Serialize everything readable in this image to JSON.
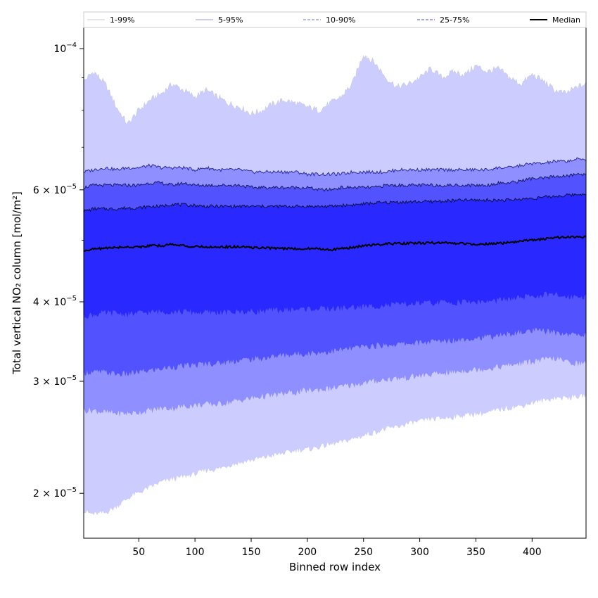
{
  "chart_data": {
    "type": "area",
    "xlabel": "Binned row index",
    "ylabel": "Total vertical NO₂ column [mol/m²]",
    "xlim": [
      1,
      448
    ],
    "ylim": [
      1.7e-05,
      0.000108
    ],
    "yscale": "log",
    "x_ticks": [
      50,
      100,
      150,
      200,
      250,
      300,
      350,
      400
    ],
    "x_tick_labels": [
      "50",
      "100",
      "150",
      "200",
      "250",
      "300",
      "350",
      "400"
    ],
    "y_ticks": [
      2e-05,
      3e-05,
      4e-05,
      6e-05,
      0.0001
    ],
    "y_tick_labels": [
      {
        "mantissa": "2",
        "exp": "−5"
      },
      {
        "mantissa": "3",
        "exp": "−5"
      },
      {
        "mantissa": "4",
        "exp": "−5"
      },
      {
        "mantissa": "6",
        "exp": "−5"
      },
      {
        "mantissa": "",
        "exp": "−4"
      }
    ],
    "legend_position": "top",
    "x": [
      1,
      10,
      20,
      30,
      40,
      50,
      60,
      70,
      80,
      90,
      100,
      110,
      120,
      130,
      140,
      150,
      160,
      170,
      180,
      190,
      200,
      210,
      220,
      230,
      240,
      250,
      260,
      270,
      280,
      290,
      300,
      310,
      320,
      330,
      340,
      350,
      360,
      370,
      380,
      390,
      400,
      410,
      420,
      430,
      440,
      448
    ],
    "bands": [
      {
        "name": "1-99%",
        "fill": "#ccccff",
        "line_color": "#c8c8e8",
        "line_style": "solid",
        "upper": [
          8.9e-05,
          9.2e-05,
          8.8e-05,
          8.1e-05,
          7.6e-05,
          8e-05,
          8.3e-05,
          8.5e-05,
          8.8e-05,
          8.6e-05,
          8.4e-05,
          8.6e-05,
          8.4e-05,
          8.2e-05,
          8.1e-05,
          7.9e-05,
          8e-05,
          8.2e-05,
          8.3e-05,
          8.2e-05,
          8.1e-05,
          8e-05,
          8.2e-05,
          8.4e-05,
          8.8e-05,
          9.8e-05,
          9.5e-05,
          9e-05,
          8.7e-05,
          8.8e-05,
          9e-05,
          9.3e-05,
          9e-05,
          9.2e-05,
          9.1e-05,
          9.4e-05,
          9.2e-05,
          9.3e-05,
          9e-05,
          8.8e-05,
          9.1e-05,
          8.9e-05,
          8.6e-05,
          8.5e-05,
          8.7e-05,
          8.8e-05
        ],
        "lower": [
          1.87e-05,
          1.85e-05,
          1.86e-05,
          1.9e-05,
          1.96e-05,
          2e-05,
          2.04e-05,
          2.08e-05,
          2.1e-05,
          2.12e-05,
          2.14e-05,
          2.17e-05,
          2.18e-05,
          2.21e-05,
          2.23e-05,
          2.25e-05,
          2.27e-05,
          2.29e-05,
          2.31e-05,
          2.33e-05,
          2.34e-05,
          2.36e-05,
          2.38e-05,
          2.4e-05,
          2.43e-05,
          2.46e-05,
          2.49e-05,
          2.52e-05,
          2.54e-05,
          2.57e-05,
          2.59e-05,
          2.61e-05,
          2.62e-05,
          2.63e-05,
          2.65e-05,
          2.66e-05,
          2.67e-05,
          2.7e-05,
          2.72e-05,
          2.74e-05,
          2.77e-05,
          2.79e-05,
          2.82e-05,
          2.82e-05,
          2.83e-05,
          2.84e-05
        ]
      },
      {
        "name": "5-95%",
        "fill": "#8f8fff",
        "line_color": "#2a2aa0",
        "line_style": "solid",
        "upper": [
          6.4e-05,
          6.45e-05,
          6.5e-05,
          6.45e-05,
          6.5e-05,
          6.5e-05,
          6.55e-05,
          6.5e-05,
          6.5e-05,
          6.5e-05,
          6.45e-05,
          6.5e-05,
          6.45e-05,
          6.45e-05,
          6.45e-05,
          6.4e-05,
          6.4e-05,
          6.4e-05,
          6.4e-05,
          6.4e-05,
          6.35e-05,
          6.35e-05,
          6.35e-05,
          6.35e-05,
          6.4e-05,
          6.4e-05,
          6.4e-05,
          6.4e-05,
          6.45e-05,
          6.45e-05,
          6.45e-05,
          6.45e-05,
          6.45e-05,
          6.45e-05,
          6.45e-05,
          6.45e-05,
          6.45e-05,
          6.5e-05,
          6.5e-05,
          6.55e-05,
          6.6e-05,
          6.6e-05,
          6.65e-05,
          6.65e-05,
          6.7e-05,
          6.7e-05
        ],
        "lower": [
          2.7e-05,
          2.7e-05,
          2.68e-05,
          2.67e-05,
          2.67e-05,
          2.68e-05,
          2.7e-05,
          2.72e-05,
          2.72e-05,
          2.74e-05,
          2.75e-05,
          2.76e-05,
          2.76e-05,
          2.78e-05,
          2.8e-05,
          2.82e-05,
          2.84e-05,
          2.85e-05,
          2.87e-05,
          2.88e-05,
          2.9e-05,
          2.91e-05,
          2.92e-05,
          2.94e-05,
          2.96e-05,
          2.98e-05,
          3e-05,
          3.02e-05,
          3.03e-05,
          3.04e-05,
          3.06e-05,
          3.07e-05,
          3.09e-05,
          3.1e-05,
          3.12e-05,
          3.13e-05,
          3.14e-05,
          3.16e-05,
          3.18e-05,
          3.2e-05,
          3.22e-05,
          3.24e-05,
          3.26e-05,
          3.22e-05,
          3.2e-05,
          3.2e-05
        ]
      },
      {
        "name": "10-90%",
        "fill": "#5252ff",
        "line_color": "#1a1a60",
        "line_style": "solid",
        "upper": [
          6.05e-05,
          6.1e-05,
          6.1e-05,
          6.1e-05,
          6.1e-05,
          6.1e-05,
          6.15e-05,
          6.15e-05,
          6.1e-05,
          6.15e-05,
          6.1e-05,
          6.1e-05,
          6.1e-05,
          6.1e-05,
          6.1e-05,
          6.05e-05,
          6.05e-05,
          6.05e-05,
          6.05e-05,
          6.05e-05,
          6.05e-05,
          6e-05,
          6e-05,
          6.05e-05,
          6.05e-05,
          6.05e-05,
          6.05e-05,
          6.1e-05,
          6.1e-05,
          6.1e-05,
          6.1e-05,
          6.1e-05,
          6.1e-05,
          6.1e-05,
          6.1e-05,
          6.1e-05,
          6.1e-05,
          6.15e-05,
          6.15e-05,
          6.2e-05,
          6.25e-05,
          6.25e-05,
          6.3e-05,
          6.3e-05,
          6.35e-05,
          6.35e-05
        ],
        "lower": [
          3.1e-05,
          3.1e-05,
          3.1e-05,
          3.08e-05,
          3.08e-05,
          3.1e-05,
          3.12e-05,
          3.14e-05,
          3.16e-05,
          3.17e-05,
          3.18e-05,
          3.2e-05,
          3.2e-05,
          3.22e-05,
          3.24e-05,
          3.25e-05,
          3.26e-05,
          3.28e-05,
          3.3e-05,
          3.31e-05,
          3.32e-05,
          3.33e-05,
          3.34e-05,
          3.36e-05,
          3.38e-05,
          3.4e-05,
          3.41e-05,
          3.42e-05,
          3.43e-05,
          3.44e-05,
          3.45e-05,
          3.46e-05,
          3.47e-05,
          3.48e-05,
          3.5e-05,
          3.51e-05,
          3.52e-05,
          3.54e-05,
          3.56e-05,
          3.58e-05,
          3.6e-05,
          3.6e-05,
          3.58e-05,
          3.56e-05,
          3.55e-05,
          3.55e-05
        ]
      },
      {
        "name": "25-75%",
        "fill": "#2828ff",
        "line_color": "#101040",
        "line_style": "solid",
        "upper": [
          5.55e-05,
          5.6e-05,
          5.6e-05,
          5.6e-05,
          5.62e-05,
          5.62e-05,
          5.65e-05,
          5.65e-05,
          5.7e-05,
          5.68e-05,
          5.67e-05,
          5.65e-05,
          5.65e-05,
          5.65e-05,
          5.65e-05,
          5.65e-05,
          5.65e-05,
          5.65e-05,
          5.65e-05,
          5.65e-05,
          5.65e-05,
          5.65e-05,
          5.65e-05,
          5.67e-05,
          5.68e-05,
          5.7e-05,
          5.72e-05,
          5.73e-05,
          5.74e-05,
          5.74e-05,
          5.75e-05,
          5.75e-05,
          5.76e-05,
          5.77e-05,
          5.78e-05,
          5.78e-05,
          5.78e-05,
          5.78e-05,
          5.78e-05,
          5.8e-05,
          5.82e-05,
          5.84e-05,
          5.86e-05,
          5.88e-05,
          5.9e-05,
          5.92e-05
        ],
        "lower": [
          3.8e-05,
          3.82e-05,
          3.84e-05,
          3.84e-05,
          3.82e-05,
          3.84e-05,
          3.85e-05,
          3.86e-05,
          3.86e-05,
          3.86e-05,
          3.85e-05,
          3.85e-05,
          3.85e-05,
          3.85e-05,
          3.86e-05,
          3.86e-05,
          3.87e-05,
          3.88e-05,
          3.88e-05,
          3.89e-05,
          3.9e-05,
          3.9e-05,
          3.9e-05,
          3.91e-05,
          3.92e-05,
          3.93e-05,
          3.94e-05,
          3.95e-05,
          3.96e-05,
          3.97e-05,
          3.98e-05,
          3.98e-05,
          3.99e-05,
          3.99e-05,
          4e-05,
          4e-05,
          4e-05,
          4.02e-05,
          4.04e-05,
          4.06e-05,
          4.08e-05,
          4.1e-05,
          4.1e-05,
          4.08e-05,
          4.08e-05,
          4.08e-05
        ]
      }
    ],
    "median": {
      "name": "Median",
      "line_color": "#000000",
      "values": [
        4.82e-05,
        4.84e-05,
        4.86e-05,
        4.87e-05,
        4.88e-05,
        4.88e-05,
        4.9e-05,
        4.9e-05,
        4.93e-05,
        4.9e-05,
        4.88e-05,
        4.88e-05,
        4.88e-05,
        4.88e-05,
        4.88e-05,
        4.87e-05,
        4.86e-05,
        4.86e-05,
        4.85e-05,
        4.85e-05,
        4.85e-05,
        4.85e-05,
        4.83e-05,
        4.85e-05,
        4.87e-05,
        4.9e-05,
        4.92e-05,
        4.93e-05,
        4.94e-05,
        4.94e-05,
        4.95e-05,
        4.95e-05,
        4.95e-05,
        4.95e-05,
        4.94e-05,
        4.93e-05,
        4.93e-05,
        4.94e-05,
        4.96e-05,
        4.98e-05,
        5e-05,
        5.02e-05,
        5.05e-05,
        5.05e-05,
        5.06e-05,
        5.06e-05
      ]
    },
    "legend": [
      {
        "label": "1-99%",
        "color": "#c8c8e8",
        "style": "solid"
      },
      {
        "label": "5-95%",
        "color": "#9898c8",
        "style": "solid"
      },
      {
        "label": "10-90%",
        "color": "#7070e0",
        "style": "dashed"
      },
      {
        "label": "25-75%",
        "color": "#4848d8",
        "style": "dashed"
      },
      {
        "label": "Median",
        "color": "#000000",
        "style": "solid-bold"
      }
    ]
  }
}
